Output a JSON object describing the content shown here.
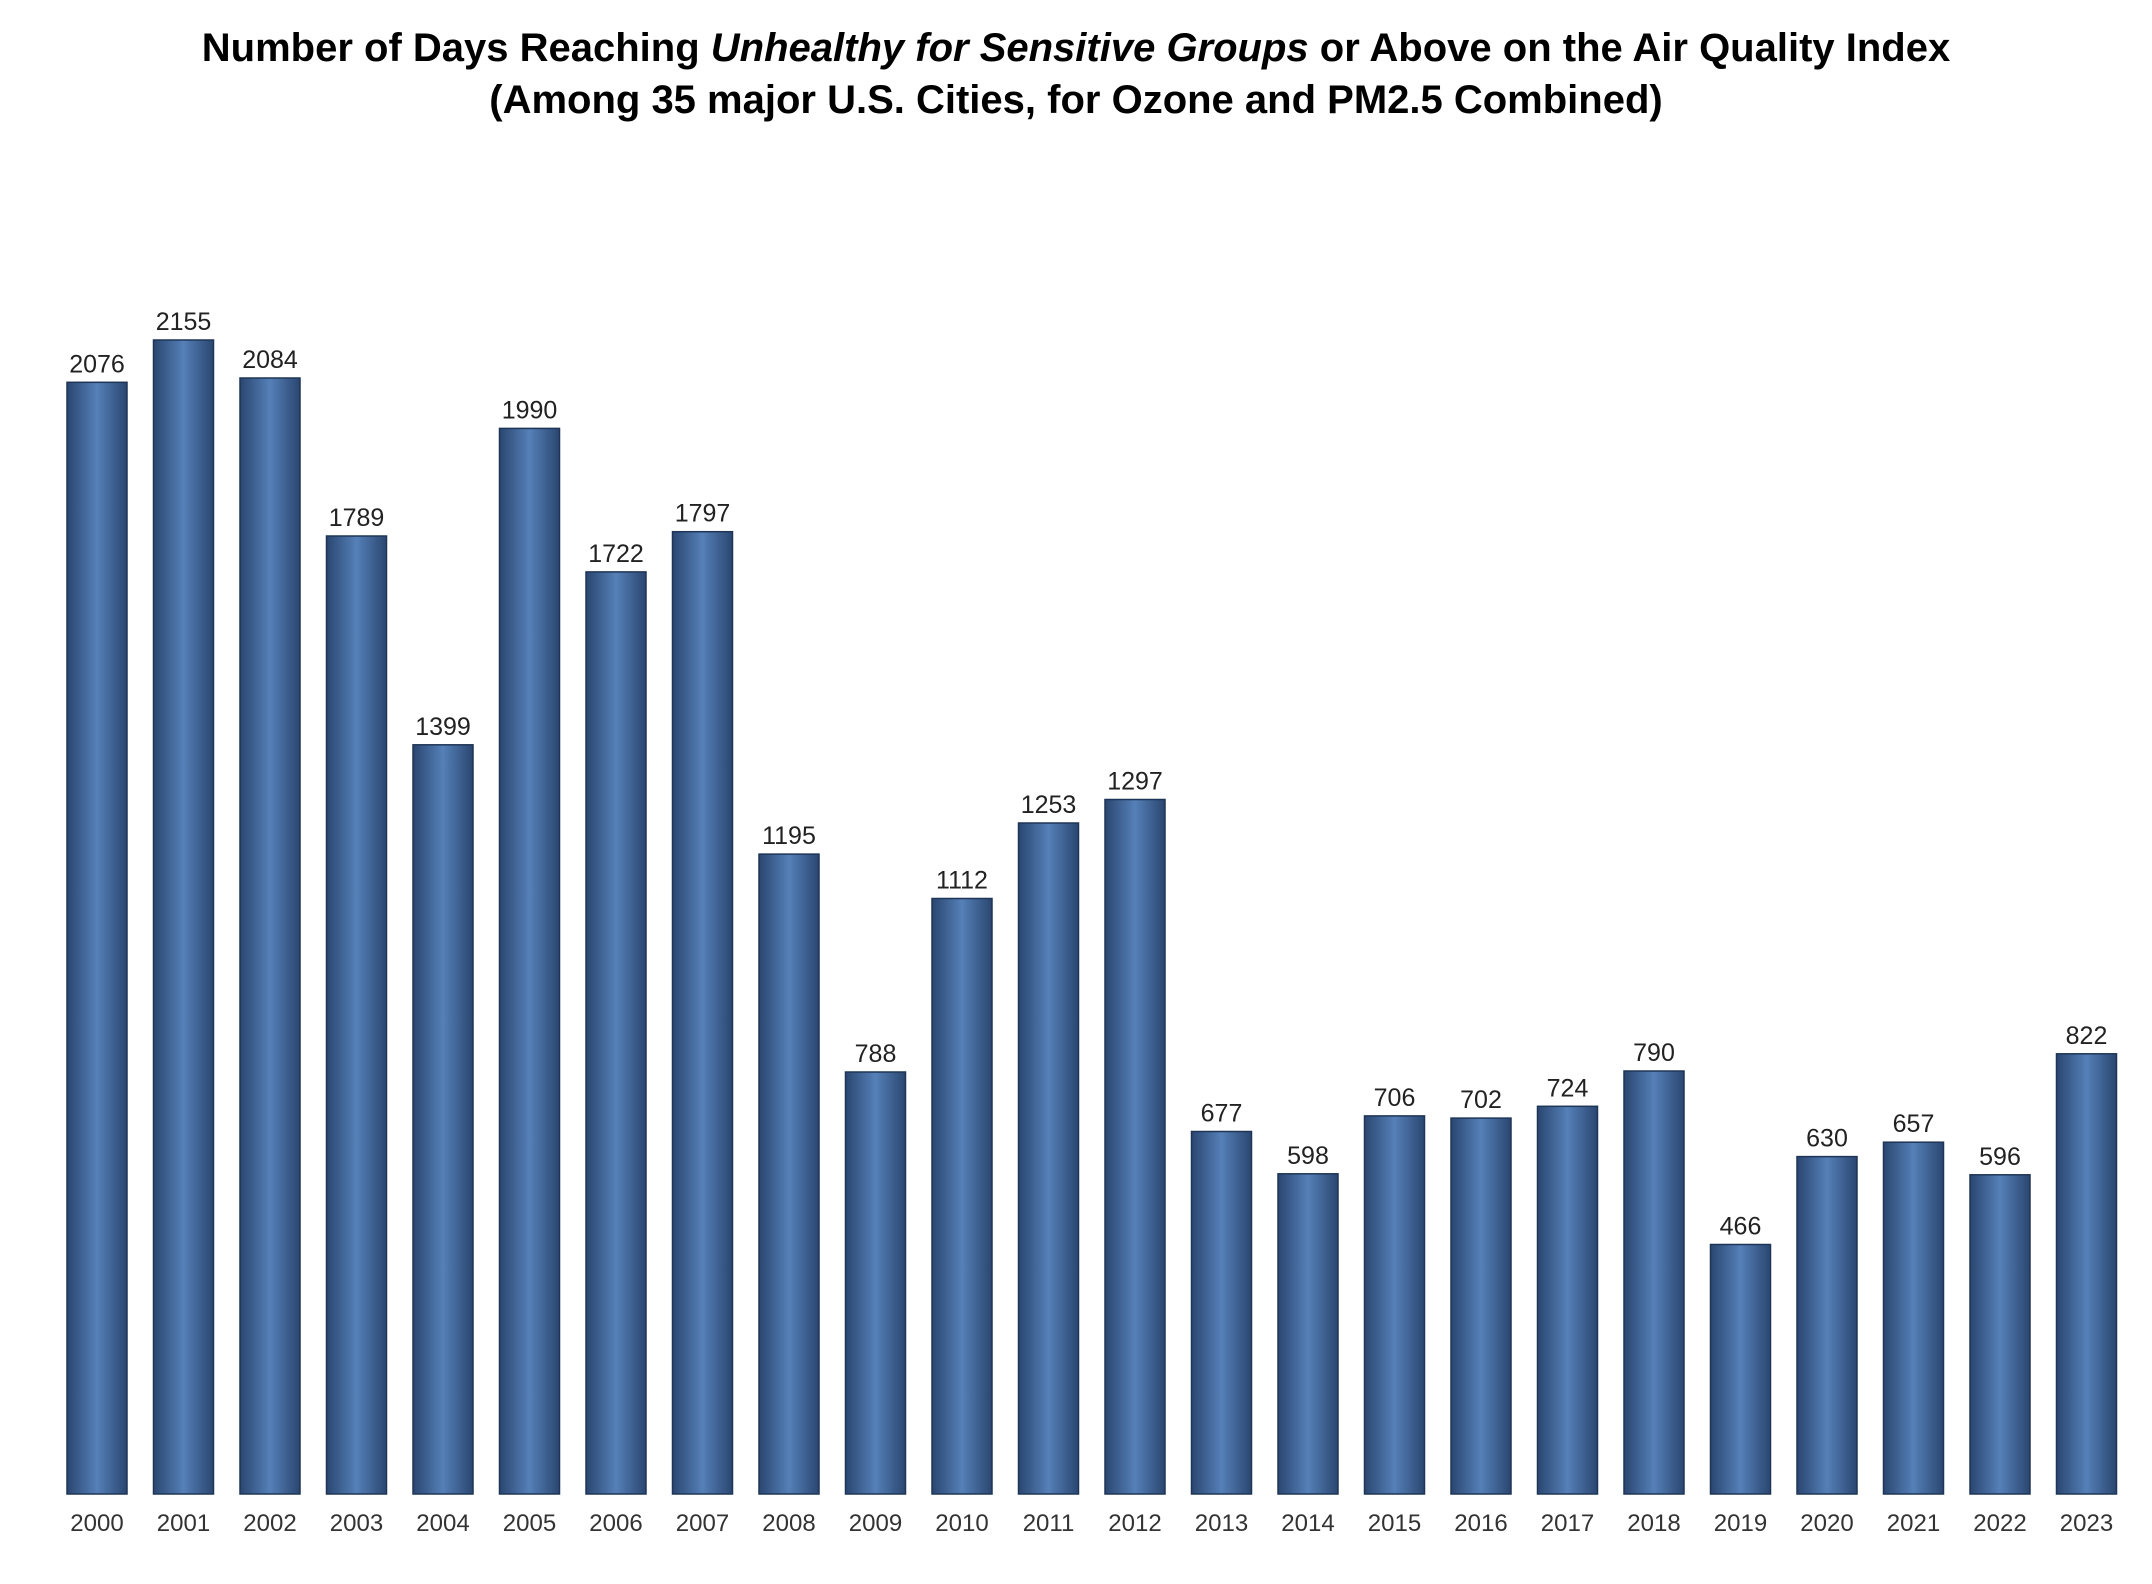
{
  "chart_data": {
    "type": "bar",
    "title": {
      "before": "Number of Days Reaching ",
      "italic": "Unhealthy for Sensitive Groups",
      "after": " or Above on the Air Quality Index"
    },
    "subtitle": "(Among 35 major U.S. Cities, for Ozone and PM2.5 Combined)",
    "xlabel": "",
    "ylabel": "",
    "categories": [
      "2000",
      "2001",
      "2002",
      "2003",
      "2004",
      "2005",
      "2006",
      "2007",
      "2008",
      "2009",
      "2010",
      "2011",
      "2012",
      "2013",
      "2014",
      "2015",
      "2016",
      "2017",
      "2018",
      "2019",
      "2020",
      "2021",
      "2022",
      "2023"
    ],
    "values": [
      2076,
      2155,
      2084,
      1789,
      1399,
      1990,
      1722,
      1797,
      1195,
      788,
      1112,
      1253,
      1297,
      677,
      598,
      706,
      702,
      724,
      790,
      466,
      630,
      657,
      596,
      822
    ],
    "ylim": [
      0,
      2155
    ],
    "grid": false,
    "legend": "none",
    "data_labels": true,
    "bar_color": "#4a6fa5"
  }
}
